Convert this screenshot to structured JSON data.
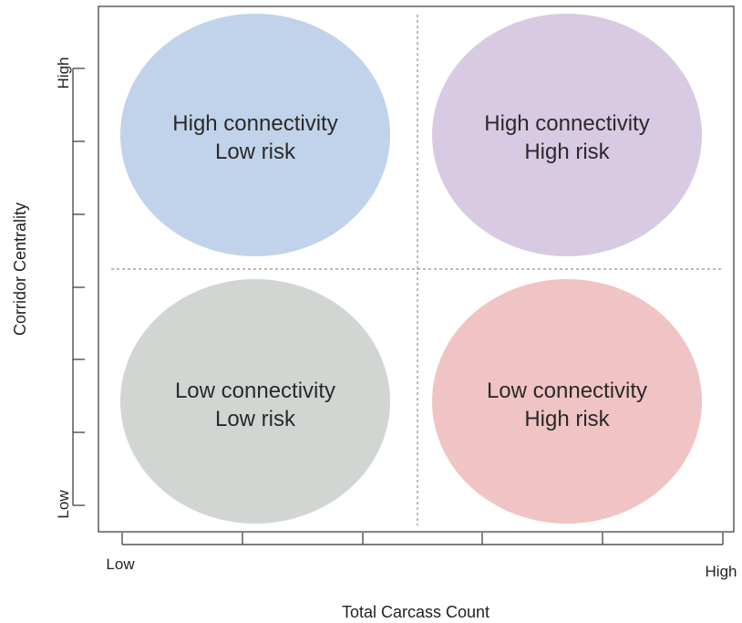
{
  "x_axis": {
    "label": "Total Carcass Count",
    "low_label": "Low",
    "high_label": "High"
  },
  "y_axis": {
    "label": "Corridor Centrality",
    "low_label": "Low",
    "high_label": "High"
  },
  "quadrants": {
    "top_left": {
      "line1": "High connectivity",
      "line2": "Low risk",
      "color": "#c1d3ea"
    },
    "top_right": {
      "line1": "High connectivity",
      "line2": "High risk",
      "color": "#d8cae3"
    },
    "bottom_left": {
      "line1": "Low connectivity",
      "line2": "Low risk",
      "color": "#d2d6d2"
    },
    "bottom_right": {
      "line1": "Low connectivity",
      "line2": "High risk",
      "color": "#f0c3c5"
    }
  }
}
